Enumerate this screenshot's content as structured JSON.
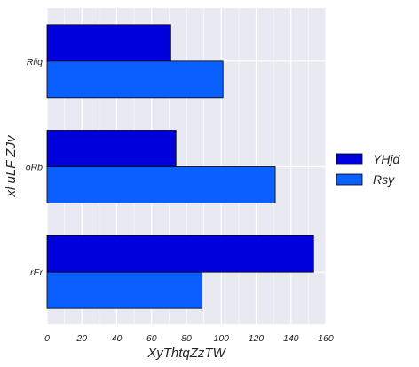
{
  "chart_data": {
    "type": "bar",
    "orientation": "horizontal",
    "categories": [
      "Riiq",
      "oRb",
      "rEr"
    ],
    "series": [
      {
        "name": "YHjd",
        "color": "#0000dd",
        "values": [
          71,
          74,
          153
        ]
      },
      {
        "name": "Rsy",
        "color": "#0a5fff",
        "values": [
          101,
          131,
          89
        ]
      }
    ],
    "xlabel": "XyThtqZzTW",
    "ylabel": "xl uLF ZJv",
    "xlim": [
      0,
      160
    ],
    "xticks": [
      0,
      20,
      40,
      60,
      80,
      100,
      120,
      140,
      160
    ],
    "grid": true,
    "legend_position": "right"
  }
}
